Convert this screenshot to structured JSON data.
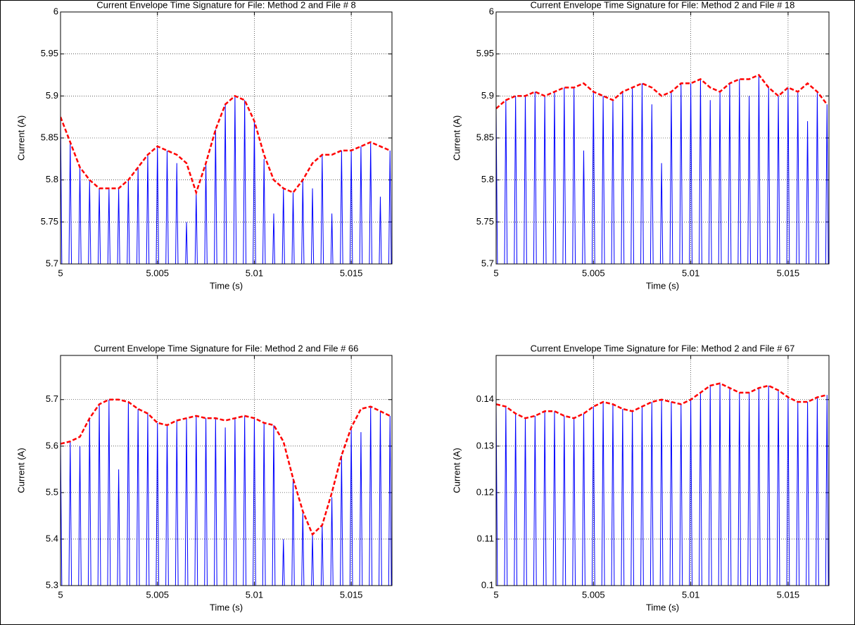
{
  "chart_data": [
    {
      "type": "line",
      "title": "Current Envelope Time Signature for File: Method 2 and File # 8",
      "xlabel": "Time (s)",
      "ylabel": "Current (A)",
      "xlim": [
        5,
        5.0171
      ],
      "ylim": [
        5.7,
        6
      ],
      "xticks": [
        5,
        5.005,
        5.01,
        5.015
      ],
      "yticks": [
        5.7,
        5.75,
        5.8,
        5.85,
        5.9,
        5.95,
        6
      ],
      "grid": true,
      "x": [
        5,
        5.0005,
        5.001,
        5.0015,
        5.002,
        5.0025,
        5.003,
        5.0035,
        5.004,
        5.0045,
        5.005,
        5.0055,
        5.006,
        5.0065,
        5.007,
        5.0075,
        5.008,
        5.0085,
        5.009,
        5.0095,
        5.01,
        5.0105,
        5.011,
        5.0115,
        5.012,
        5.0125,
        5.013,
        5.0135,
        5.014,
        5.0145,
        5.015,
        5.0155,
        5.016,
        5.0165,
        5.017
      ],
      "series": [
        {
          "style": "spike",
          "color": "#0000ff",
          "values": [
            5.875,
            5.845,
            5.815,
            5.8,
            5.79,
            5.79,
            5.79,
            5.8,
            5.815,
            5.83,
            5.84,
            5.835,
            5.82,
            5.75,
            5.785,
            5.82,
            5.86,
            5.89,
            5.9,
            5.895,
            5.87,
            5.825,
            5.76,
            5.79,
            5.785,
            5.8,
            5.79,
            5.83,
            5.76,
            5.835,
            5.835,
            5.84,
            5.845,
            5.78,
            5.835
          ]
        },
        {
          "style": "dashed",
          "color": "#ff0000",
          "values": [
            5.875,
            5.845,
            5.815,
            5.8,
            5.79,
            5.79,
            5.79,
            5.8,
            5.815,
            5.83,
            5.84,
            5.835,
            5.83,
            5.82,
            5.785,
            5.82,
            5.86,
            5.89,
            5.9,
            5.895,
            5.87,
            5.83,
            5.8,
            5.79,
            5.785,
            5.8,
            5.82,
            5.83,
            5.83,
            5.835,
            5.835,
            5.84,
            5.845,
            5.84,
            5.835
          ]
        }
      ]
    },
    {
      "type": "line",
      "title": "Current Envelope Time Signature for File: Method 2 and File # 18",
      "xlabel": "Time (s)",
      "ylabel": "Current (A)",
      "xlim": [
        5,
        5.0171
      ],
      "ylim": [
        5.7,
        6
      ],
      "xticks": [
        5,
        5.005,
        5.01,
        5.015
      ],
      "yticks": [
        5.7,
        5.75,
        5.8,
        5.85,
        5.9,
        5.95,
        6
      ],
      "grid": true,
      "x": [
        5,
        5.0005,
        5.001,
        5.0015,
        5.002,
        5.0025,
        5.003,
        5.0035,
        5.004,
        5.0045,
        5.005,
        5.0055,
        5.006,
        5.0065,
        5.007,
        5.0075,
        5.008,
        5.0085,
        5.009,
        5.0095,
        5.01,
        5.0105,
        5.011,
        5.0115,
        5.012,
        5.0125,
        5.013,
        5.0135,
        5.014,
        5.0145,
        5.015,
        5.0155,
        5.016,
        5.0165,
        5.017
      ],
      "series": [
        {
          "style": "spike",
          "color": "#0000ff",
          "values": [
            5.885,
            5.895,
            5.9,
            5.9,
            5.905,
            5.9,
            5.905,
            5.91,
            5.91,
            5.835,
            5.905,
            5.9,
            5.895,
            5.905,
            5.91,
            5.915,
            5.89,
            5.82,
            5.905,
            5.915,
            5.915,
            5.92,
            5.895,
            5.905,
            5.915,
            5.92,
            5.9,
            5.925,
            5.91,
            5.9,
            5.91,
            5.905,
            5.87,
            5.905,
            5.89
          ]
        },
        {
          "style": "dashed",
          "color": "#ff0000",
          "values": [
            5.885,
            5.895,
            5.9,
            5.9,
            5.905,
            5.9,
            5.905,
            5.91,
            5.91,
            5.915,
            5.905,
            5.9,
            5.895,
            5.905,
            5.91,
            5.915,
            5.91,
            5.9,
            5.905,
            5.915,
            5.915,
            5.92,
            5.91,
            5.905,
            5.915,
            5.92,
            5.92,
            5.925,
            5.91,
            5.9,
            5.91,
            5.905,
            5.915,
            5.905,
            5.89
          ]
        }
      ]
    },
    {
      "type": "line",
      "title": "Current Envelope Time Signature for File: Method 2 and File # 66",
      "xlabel": "Time (s)",
      "ylabel": "Current (A)",
      "xlim": [
        5,
        5.0171
      ],
      "ylim": [
        5.3,
        5.795
      ],
      "xticks": [
        5,
        5.005,
        5.01,
        5.015
      ],
      "yticks": [
        5.3,
        5.4,
        5.5,
        5.6,
        5.7
      ],
      "grid": true,
      "x": [
        5,
        5.0005,
        5.001,
        5.0015,
        5.002,
        5.0025,
        5.003,
        5.0035,
        5.004,
        5.0045,
        5.005,
        5.0055,
        5.006,
        5.0065,
        5.007,
        5.0075,
        5.008,
        5.0085,
        5.009,
        5.0095,
        5.01,
        5.0105,
        5.011,
        5.0115,
        5.012,
        5.0125,
        5.013,
        5.0135,
        5.014,
        5.0145,
        5.015,
        5.0155,
        5.016,
        5.0165,
        5.017
      ],
      "series": [
        {
          "style": "spike",
          "color": "#0000ff",
          "values": [
            5.605,
            5.61,
            5.6,
            5.66,
            5.69,
            5.7,
            5.55,
            5.695,
            5.68,
            5.67,
            5.65,
            5.645,
            5.655,
            5.66,
            5.665,
            5.66,
            5.66,
            5.64,
            5.66,
            5.665,
            5.66,
            5.65,
            5.645,
            5.4,
            5.53,
            5.46,
            5.41,
            5.43,
            5.49,
            5.58,
            5.64,
            5.63,
            5.685,
            5.675,
            5.665
          ]
        },
        {
          "style": "dashed",
          "color": "#ff0000",
          "values": [
            5.605,
            5.61,
            5.62,
            5.66,
            5.69,
            5.7,
            5.7,
            5.695,
            5.68,
            5.67,
            5.65,
            5.645,
            5.655,
            5.66,
            5.665,
            5.66,
            5.66,
            5.655,
            5.66,
            5.665,
            5.66,
            5.65,
            5.645,
            5.61,
            5.53,
            5.46,
            5.41,
            5.43,
            5.5,
            5.58,
            5.64,
            5.68,
            5.685,
            5.675,
            5.665
          ]
        }
      ]
    },
    {
      "type": "line",
      "title": "Current Envelope Time Signature for File: Method 2 and File # 67",
      "xlabel": "Time (s)",
      "ylabel": "Current (A)",
      "xlim": [
        5,
        5.0171
      ],
      "ylim": [
        0.1,
        0.1495
      ],
      "xticks": [
        5,
        5.005,
        5.01,
        5.015
      ],
      "yticks": [
        0.1,
        0.11,
        0.12,
        0.13,
        0.14
      ],
      "grid": true,
      "x": [
        5,
        5.0005,
        5.001,
        5.0015,
        5.002,
        5.0025,
        5.003,
        5.0035,
        5.004,
        5.0045,
        5.005,
        5.0055,
        5.006,
        5.0065,
        5.007,
        5.0075,
        5.008,
        5.0085,
        5.009,
        5.0095,
        5.01,
        5.0105,
        5.011,
        5.0115,
        5.012,
        5.0125,
        5.013,
        5.0135,
        5.014,
        5.0145,
        5.015,
        5.0155,
        5.016,
        5.0165,
        5.017
      ],
      "series": [
        {
          "style": "spike",
          "color": "#0000ff",
          "values": [
            0.139,
            0.1385,
            0.137,
            0.136,
            0.1365,
            0.1375,
            0.1375,
            0.1365,
            0.136,
            0.137,
            0.1385,
            0.1395,
            0.139,
            0.138,
            0.1375,
            0.1385,
            0.1395,
            0.14,
            0.1395,
            0.139,
            0.14,
            0.1415,
            0.143,
            0.1435,
            0.1425,
            0.1415,
            0.1415,
            0.1425,
            0.143,
            0.142,
            0.1405,
            0.1395,
            0.1395,
            0.1405,
            0.141
          ]
        },
        {
          "style": "dashed",
          "color": "#ff0000",
          "values": [
            0.139,
            0.1385,
            0.137,
            0.136,
            0.1365,
            0.1375,
            0.1375,
            0.1365,
            0.136,
            0.137,
            0.1385,
            0.1395,
            0.139,
            0.138,
            0.1375,
            0.1385,
            0.1395,
            0.14,
            0.1395,
            0.139,
            0.14,
            0.1415,
            0.143,
            0.1435,
            0.1425,
            0.1415,
            0.1415,
            0.1425,
            0.143,
            0.142,
            0.1405,
            0.1395,
            0.1395,
            0.1405,
            0.141
          ]
        }
      ]
    }
  ]
}
